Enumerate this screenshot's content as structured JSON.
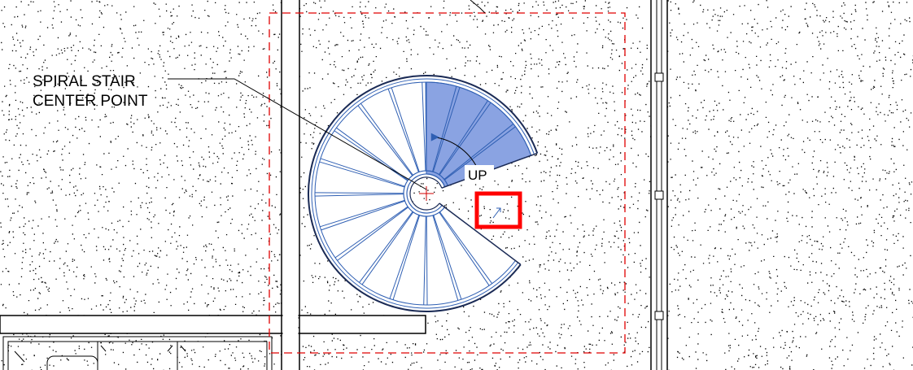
{
  "drawing": {
    "callout": {
      "line1": "SPIRAL STAIR",
      "line2": "CENTER POINT"
    },
    "up_label": "UP"
  },
  "colors": {
    "background": "#ffffff",
    "linework": "#000000",
    "stair_blue": "#2f5fb3",
    "stair_fill": "#8aa3e2",
    "crop_region": "#e00000",
    "highlight_box": "#ff0000"
  },
  "stair": {
    "total_treads": 17,
    "highlighted_treads": 3
  }
}
